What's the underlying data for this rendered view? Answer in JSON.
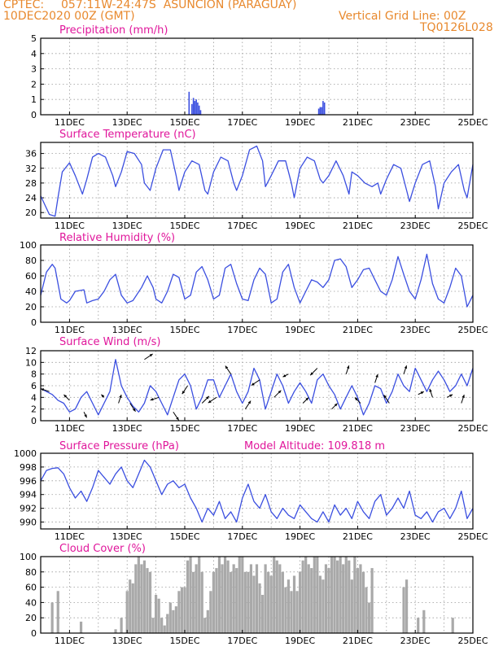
{
  "header": {
    "source": "CPTEC:",
    "location": "057:11W-24:47S  ASUNCION (PARAGUAY)",
    "datetime": "10DEC2020 00Z (GMT)",
    "grid_note": "Vertical Grid Line: 00Z",
    "code": "TQ0126L028"
  },
  "colors": {
    "header": "#e8892e",
    "title": "#e0169b",
    "line": "#3b4fe0",
    "bar": "#a9a9a9",
    "grid": "#9a9a9a",
    "arrow": "#000000"
  },
  "x_axis": {
    "ticks": [
      "11DEC",
      "13DEC",
      "15DEC",
      "17DEC",
      "19DEC",
      "21DEC",
      "23DEC",
      "25DEC"
    ],
    "tick_days": [
      1,
      3,
      5,
      7,
      9,
      11,
      13,
      15
    ],
    "range_days": [
      0,
      15
    ]
  },
  "chart_data": [
    {
      "type": "bar",
      "title": "Precipitation (mm/h)",
      "ylim": [
        0,
        5
      ],
      "yticks": [
        "0",
        "1",
        "2",
        "3",
        "4",
        "5"
      ],
      "x": [
        5.15,
        5.25,
        5.3,
        5.35,
        5.4,
        5.45,
        5.5,
        5.55,
        9.65,
        9.7,
        9.75,
        9.8,
        9.85
      ],
      "values": [
        1.5,
        0.7,
        1.1,
        0.9,
        1.0,
        0.8,
        0.6,
        0.3,
        0.4,
        0.5,
        0.5,
        0.9,
        0.8
      ]
    },
    {
      "type": "line",
      "title": "Surface Temperature (nC)",
      "ylim": [
        18.5,
        39
      ],
      "yticks": [
        "20",
        "24",
        "28",
        "32",
        "36"
      ],
      "x": [
        0,
        0.15,
        0.3,
        0.5,
        0.6,
        0.75,
        1.0,
        1.2,
        1.45,
        1.6,
        1.8,
        2.0,
        2.25,
        2.5,
        2.6,
        2.8,
        3.0,
        3.25,
        3.5,
        3.6,
        3.8,
        4.0,
        4.25,
        4.5,
        4.7,
        4.8,
        5.0,
        5.25,
        5.5,
        5.7,
        5.8,
        6.0,
        6.25,
        6.5,
        6.7,
        6.8,
        7.0,
        7.25,
        7.5,
        7.7,
        7.8,
        8.0,
        8.25,
        8.5,
        8.7,
        8.8,
        9.0,
        9.25,
        9.5,
        9.7,
        9.8,
        10.0,
        10.25,
        10.5,
        10.7,
        10.8,
        11.0,
        11.25,
        11.5,
        11.7,
        11.8,
        12.0,
        12.25,
        12.5,
        12.7,
        12.8,
        13.0,
        13.25,
        13.5,
        13.7,
        13.8,
        14.0,
        14.25,
        14.5,
        14.7,
        14.8,
        15.0
      ],
      "values": [
        24.5,
        22,
        19.5,
        19,
        24,
        31,
        33.5,
        30,
        25,
        29,
        35,
        36,
        35,
        30,
        27,
        31,
        36.5,
        36,
        33,
        28,
        26,
        32,
        37,
        37,
        30,
        26,
        31,
        34,
        33,
        26,
        25,
        31,
        35,
        34,
        28,
        26,
        30,
        37,
        38,
        34,
        27,
        30,
        34,
        34,
        28,
        24,
        32,
        35,
        34,
        29,
        28,
        30,
        34,
        30,
        25,
        31,
        30,
        28,
        27,
        28,
        25,
        29,
        33,
        32,
        26,
        23,
        28,
        33,
        34,
        27,
        21,
        28,
        31,
        33,
        26,
        24,
        33
      ]
    },
    {
      "type": "line",
      "title": "Relative Humidity (%)",
      "ylim": [
        0,
        100
      ],
      "yticks": [
        "0",
        "20",
        "40",
        "60",
        "80",
        "100"
      ],
      "x": [
        0,
        0.2,
        0.4,
        0.5,
        0.7,
        0.9,
        1.0,
        1.2,
        1.5,
        1.6,
        1.8,
        2.0,
        2.2,
        2.4,
        2.6,
        2.8,
        3.0,
        3.2,
        3.5,
        3.7,
        3.9,
        4.0,
        4.2,
        4.4,
        4.6,
        4.8,
        5.0,
        5.2,
        5.4,
        5.6,
        5.8,
        6.0,
        6.2,
        6.4,
        6.6,
        6.8,
        7.0,
        7.2,
        7.4,
        7.6,
        7.8,
        8.0,
        8.2,
        8.4,
        8.6,
        8.8,
        9.0,
        9.2,
        9.4,
        9.6,
        9.8,
        10.0,
        10.2,
        10.4,
        10.6,
        10.8,
        11.0,
        11.2,
        11.4,
        11.6,
        11.8,
        12.0,
        12.2,
        12.4,
        12.6,
        12.8,
        13.0,
        13.2,
        13.4,
        13.6,
        13.8,
        14.0,
        14.2,
        14.4,
        14.6,
        14.8,
        15.0
      ],
      "values": [
        35,
        65,
        75,
        70,
        30,
        25,
        28,
        40,
        42,
        25,
        28,
        30,
        40,
        55,
        62,
        35,
        25,
        28,
        45,
        60,
        45,
        30,
        25,
        40,
        62,
        58,
        30,
        35,
        65,
        72,
        55,
        30,
        35,
        70,
        75,
        50,
        30,
        28,
        55,
        70,
        62,
        25,
        30,
        65,
        75,
        45,
        25,
        40,
        55,
        52,
        45,
        55,
        80,
        82,
        72,
        45,
        55,
        68,
        70,
        55,
        40,
        35,
        55,
        85,
        62,
        40,
        30,
        55,
        88,
        50,
        30,
        25,
        45,
        70,
        60,
        20,
        35
      ]
    },
    {
      "type": "line",
      "title": "Surface Wind (m/s)",
      "ylim": [
        0,
        12
      ],
      "yticks": [
        "0",
        "2",
        "4",
        "6",
        "8",
        "10",
        "12"
      ],
      "x": [
        0,
        0.2,
        0.4,
        0.6,
        0.8,
        1.0,
        1.2,
        1.4,
        1.6,
        1.8,
        2.0,
        2.2,
        2.4,
        2.6,
        2.8,
        3.0,
        3.2,
        3.4,
        3.6,
        3.8,
        4.0,
        4.2,
        4.4,
        4.6,
        4.8,
        5.0,
        5.2,
        5.4,
        5.6,
        5.8,
        6.0,
        6.2,
        6.4,
        6.6,
        6.8,
        7.0,
        7.2,
        7.4,
        7.6,
        7.8,
        8.0,
        8.2,
        8.4,
        8.6,
        8.8,
        9.0,
        9.2,
        9.4,
        9.6,
        9.8,
        10.0,
        10.2,
        10.4,
        10.6,
        10.8,
        11.0,
        11.2,
        11.4,
        11.6,
        11.8,
        12.0,
        12.2,
        12.4,
        12.6,
        12.8,
        13.0,
        13.2,
        13.4,
        13.6,
        13.8,
        14.0,
        14.2,
        14.4,
        14.6,
        14.8,
        15.0
      ],
      "values": [
        5.5,
        5,
        4.5,
        3.5,
        3,
        1.5,
        2,
        4,
        5,
        3,
        1,
        3,
        5,
        10.5,
        6,
        4,
        2.5,
        1.5,
        3,
        6,
        5,
        3,
        1,
        4,
        7,
        8,
        6,
        2,
        4,
        7,
        7,
        4,
        6,
        8,
        5,
        3,
        5,
        9,
        7,
        2,
        5,
        8,
        6,
        3,
        5,
        6.5,
        5,
        3,
        7,
        8,
        6,
        4.5,
        2,
        4,
        6,
        4,
        1,
        3,
        6,
        5.5,
        3,
        5,
        8,
        6,
        5,
        9,
        7,
        5,
        7,
        8.5,
        7,
        5,
        6,
        8,
        6,
        9
      ]
    },
    {
      "type": "line",
      "title": "Surface Pressure (hPa)",
      "annotation": "Model Altitude: 109.818 m",
      "ylim": [
        989,
        1000
      ],
      "yticks": [
        "990",
        "992",
        "994",
        "996",
        "998",
        "1000"
      ],
      "x": [
        0,
        0.2,
        0.4,
        0.6,
        0.8,
        1.0,
        1.2,
        1.4,
        1.6,
        1.8,
        2.0,
        2.2,
        2.4,
        2.6,
        2.8,
        3.0,
        3.2,
        3.4,
        3.6,
        3.8,
        4.0,
        4.2,
        4.4,
        4.6,
        4.8,
        5.0,
        5.2,
        5.4,
        5.6,
        5.8,
        6.0,
        6.2,
        6.4,
        6.6,
        6.8,
        7.0,
        7.2,
        7.4,
        7.6,
        7.8,
        8.0,
        8.2,
        8.4,
        8.6,
        8.8,
        9.0,
        9.2,
        9.4,
        9.6,
        9.8,
        10.0,
        10.2,
        10.4,
        10.6,
        10.8,
        11.0,
        11.2,
        11.4,
        11.6,
        11.8,
        12.0,
        12.2,
        12.4,
        12.6,
        12.8,
        13.0,
        13.2,
        13.4,
        13.6,
        13.8,
        14.0,
        14.2,
        14.4,
        14.6,
        14.8,
        15.0
      ],
      "values": [
        996,
        997.5,
        997.8,
        997.9,
        997,
        995,
        993.5,
        994.5,
        993,
        995,
        997.5,
        996.5,
        995.5,
        997,
        998,
        996,
        995,
        997,
        999,
        998,
        996,
        994,
        995.5,
        996,
        995,
        995.5,
        993.5,
        992,
        990,
        992,
        991,
        993,
        990.5,
        991.5,
        990,
        993.5,
        995.5,
        993,
        992,
        994,
        991.5,
        990.5,
        992,
        991,
        990.5,
        992.5,
        991.5,
        990.5,
        990,
        991.5,
        990,
        992.5,
        991,
        992,
        990.5,
        993,
        991.5,
        990.5,
        993,
        994,
        991,
        992,
        993.5,
        992,
        994.5,
        991,
        990.5,
        991.5,
        990,
        991.5,
        992,
        990.5,
        992,
        994.5,
        990.5,
        992
      ]
    },
    {
      "type": "bar",
      "title": "Cloud Cover (%)",
      "ylim": [
        0,
        100
      ],
      "yticks": [
        "0",
        "20",
        "40",
        "60",
        "80",
        "100"
      ],
      "x": [
        0.4,
        0.6,
        1.4,
        2.6,
        2.8,
        3.0,
        3.1,
        3.2,
        3.3,
        3.4,
        3.5,
        3.6,
        3.7,
        3.8,
        3.9,
        4.0,
        4.1,
        4.2,
        4.3,
        4.4,
        4.5,
        4.6,
        4.7,
        4.8,
        4.9,
        5.0,
        5.1,
        5.2,
        5.3,
        5.4,
        5.5,
        5.6,
        5.7,
        5.8,
        5.9,
        6.0,
        6.1,
        6.2,
        6.3,
        6.4,
        6.5,
        6.6,
        6.7,
        6.8,
        6.9,
        7.0,
        7.1,
        7.2,
        7.3,
        7.4,
        7.5,
        7.6,
        7.7,
        7.8,
        7.9,
        8.0,
        8.1,
        8.2,
        8.3,
        8.4,
        8.5,
        8.6,
        8.7,
        8.8,
        8.9,
        9.0,
        9.1,
        9.2,
        9.3,
        9.4,
        9.5,
        9.6,
        9.7,
        9.8,
        9.9,
        10.0,
        10.1,
        10.2,
        10.3,
        10.4,
        10.5,
        10.6,
        10.7,
        10.8,
        10.9,
        11.0,
        11.1,
        11.2,
        11.3,
        11.4,
        11.5,
        12.6,
        12.7,
        13.1,
        13.3,
        14.3
      ],
      "values": [
        40,
        55,
        15,
        5,
        20,
        55,
        70,
        65,
        90,
        100,
        90,
        95,
        85,
        80,
        20,
        50,
        45,
        20,
        10,
        25,
        40,
        30,
        35,
        55,
        60,
        60,
        95,
        100,
        80,
        90,
        100,
        80,
        20,
        30,
        55,
        80,
        85,
        100,
        90,
        100,
        95,
        80,
        90,
        85,
        100,
        100,
        80,
        80,
        90,
        75,
        90,
        65,
        50,
        90,
        80,
        75,
        100,
        95,
        90,
        80,
        60,
        70,
        55,
        75,
        55,
        80,
        95,
        100,
        90,
        85,
        100,
        100,
        75,
        70,
        90,
        85,
        100,
        100,
        95,
        100,
        90,
        100,
        95,
        70,
        100,
        85,
        90,
        80,
        60,
        40,
        85,
        60,
        70,
        20,
        30,
        20
      ]
    }
  ],
  "wind_arrows": {
    "x": [
      0.3,
      1.0,
      1.5,
      2.2,
      2.7,
      3.1,
      3.6,
      4.1,
      4.6,
      5.1,
      5.6,
      6.1,
      6.6,
      7.1,
      7.6,
      8.1,
      8.6,
      9.1,
      9.6,
      10.1,
      10.6,
      11.1,
      11.6,
      12.1,
      12.6,
      13.1,
      13.6,
      14.1,
      14.6
    ],
    "u": [
      -3,
      -2,
      1,
      -1,
      1,
      2,
      3,
      -3,
      2,
      -2,
      3,
      -3,
      -2,
      2,
      -3,
      3,
      -2,
      2,
      -3,
      2,
      1,
      -2,
      1,
      -2,
      1,
      2,
      -1,
      2,
      1
    ],
    "v": [
      1,
      2,
      -2,
      1,
      3,
      -3,
      2,
      -1,
      -3,
      -3,
      3,
      -2,
      3,
      3,
      -2,
      3,
      -1,
      2,
      -3,
      2,
      3,
      2,
      3,
      3,
      3,
      1,
      3,
      1,
      3
    ]
  }
}
